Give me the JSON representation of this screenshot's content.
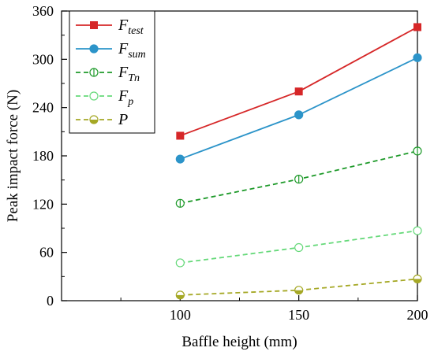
{
  "chart_data": {
    "type": "line",
    "title": "",
    "xlabel": "Baffle height (mm)",
    "ylabel": "Peak impact force (N)",
    "x": [
      100,
      150,
      200
    ],
    "xlim": [
      50,
      200
    ],
    "ylim": [
      0,
      360
    ],
    "xticks": [
      100,
      150,
      200
    ],
    "yticks": [
      0,
      60,
      120,
      180,
      240,
      300,
      360
    ],
    "grid": false,
    "legend_position": "top-left",
    "series": [
      {
        "name": "F",
        "sub": "test",
        "values": [
          205,
          260,
          340
        ],
        "color": "#d62728",
        "dash": "",
        "marker": "square-filled"
      },
      {
        "name": "F",
        "sub": "sum",
        "values": [
          176,
          231,
          302
        ],
        "color": "#2c94c9",
        "dash": "",
        "marker": "circle-filled"
      },
      {
        "name": "F",
        "sub": "Tn",
        "values": [
          121,
          151,
          186
        ],
        "color": "#1e9a2a",
        "dash": "6,4",
        "marker": "circle-bar"
      },
      {
        "name": "F",
        "sub": "p",
        "values": [
          47,
          66,
          87
        ],
        "color": "#66d97a",
        "dash": "6,4",
        "marker": "circle-open"
      },
      {
        "name": "P",
        "sub": "",
        "values": [
          7,
          13,
          27
        ],
        "color": "#a5a825",
        "dash": "6,4",
        "marker": "circle-half"
      }
    ]
  }
}
